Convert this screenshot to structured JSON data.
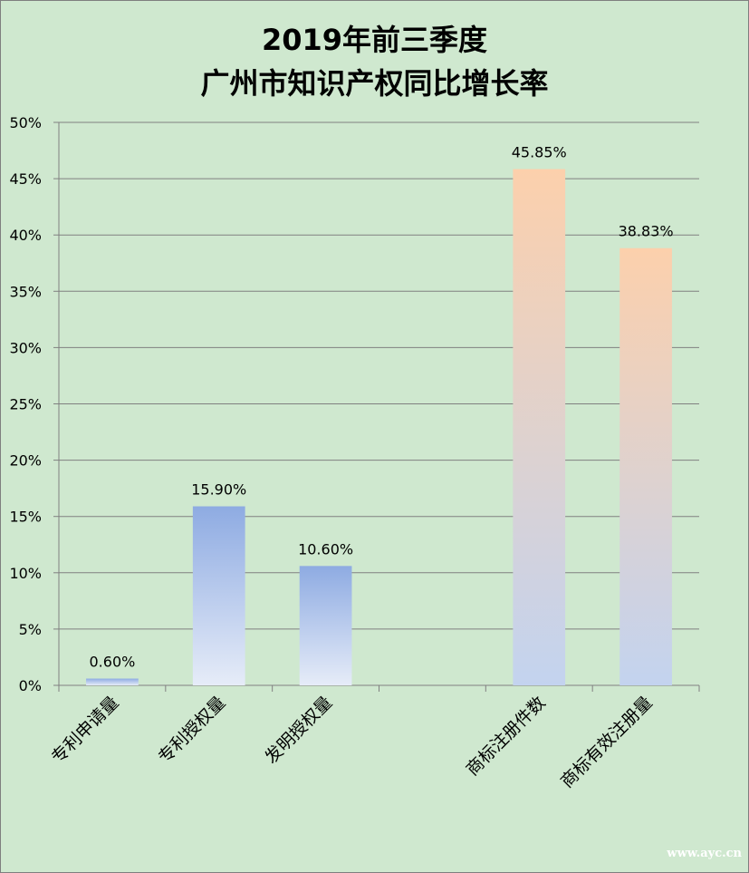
{
  "chart_data": {
    "type": "bar",
    "title_line1": "2019年前三季度",
    "title_line2": "广州市知识产权同比增长率",
    "categories": [
      "专利申请量",
      "专利授权量",
      "发明授权量",
      "",
      "商标注册件数",
      "商标有效注册量"
    ],
    "values": [
      0.6,
      15.9,
      10.6,
      null,
      45.85,
      38.83
    ],
    "value_labels": [
      "0.60%",
      "15.90%",
      "10.60%",
      "",
      "45.85%",
      "38.83%"
    ],
    "bar_groups": [
      "patent",
      "patent",
      "patent",
      "",
      "trademark",
      "trademark"
    ],
    "ylim": [
      0,
      50
    ],
    "yticks": [
      0,
      5,
      10,
      15,
      20,
      25,
      30,
      35,
      40,
      45,
      50
    ],
    "ytick_labels": [
      "0%",
      "5%",
      "10%",
      "15%",
      "20%",
      "25%",
      "30%",
      "35%",
      "40%",
      "45%",
      "50%"
    ],
    "grid": true,
    "legend": "none",
    "colors": {
      "background": "#cfe8cf",
      "grid": "#808080",
      "patent_top": "#8eabe2",
      "patent_bottom": "#e6ecf8",
      "trademark_top": "#fcd0ac",
      "trademark_bottom": "#c3d3ef"
    }
  },
  "watermark": "www.ayc.cn"
}
